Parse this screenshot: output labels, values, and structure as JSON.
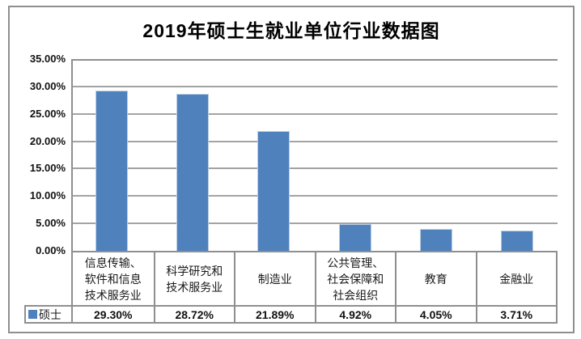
{
  "frame": {
    "background": "#ffffff",
    "border_color": "#8f8f8f"
  },
  "chart_data": {
    "type": "bar",
    "title": "2019年硕士生就业单位行业数据图",
    "categories": [
      "信息传输、软件和信息技术服务业",
      "科学研究和技术服务业",
      "制造业",
      "公共管理、社会保障和社会组织",
      "教育",
      "金融业"
    ],
    "categories_wrapped": [
      "信息传输、\n软件和信息\n技术服务业",
      "科学研究和\n技术服务业",
      "制造业",
      "公共管理、\n社会保障和\n社会组织",
      "教育",
      "金融业"
    ],
    "series": [
      {
        "name": "硕士",
        "values": [
          29.3,
          28.72,
          21.89,
          4.92,
          4.05,
          3.71
        ]
      }
    ],
    "values_display": [
      "29.30%",
      "28.72%",
      "21.89%",
      "4.92%",
      "4.05%",
      "3.71%"
    ],
    "y_ticks": [
      "35.00%",
      "30.00%",
      "25.00%",
      "20.00%",
      "15.00%",
      "10.00%",
      "5.00%",
      "0.00%"
    ],
    "ylim": [
      0,
      35
    ],
    "y_tick_step": 5,
    "grid": true,
    "xlabel": "",
    "ylabel": "",
    "legend": {
      "label": "硕士",
      "position": "bottom-left-table"
    },
    "bar_color": "#4f81bd",
    "bar_edge_color": "#b9cce4",
    "gridline_color": "#a3a3a3",
    "axis_color": "#8f8f8f"
  }
}
